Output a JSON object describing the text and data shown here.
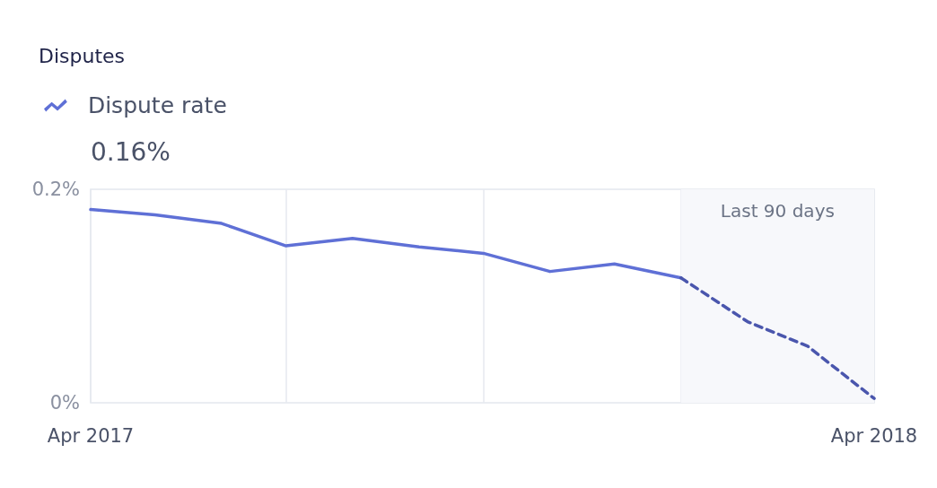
{
  "chart_data": {
    "type": "line",
    "title": "Disputes",
    "subtitle": "0.16%",
    "x": [
      "2017-04",
      "2017-05",
      "2017-06",
      "2017-07",
      "2017-08",
      "2017-09",
      "2017-10",
      "2017-11",
      "2017-12",
      "2018-01",
      "2018-02",
      "2018-03",
      "2018-04"
    ],
    "series": [
      {
        "name": "Dispute rate",
        "color": "#5f70d6",
        "line_style": "solid",
        "values": [
          0.181,
          0.176,
          0.168,
          0.147,
          0.154,
          0.146,
          0.14,
          0.123,
          0.13,
          0.117,
          null,
          null,
          null
        ]
      },
      {
        "color": "#4a56ad",
        "line_style": "dashed",
        "values": [
          null,
          null,
          null,
          null,
          null,
          null,
          null,
          null,
          null,
          0.117,
          0.076,
          0.053,
          0.004
        ]
      }
    ],
    "xlim": [
      "2017-04",
      "2018-04"
    ],
    "xticks": [
      {
        "value": "2017-04",
        "label": "Apr 2017"
      },
      {
        "value": "2017-07",
        "label": null
      },
      {
        "value": "2017-10",
        "label": null
      },
      {
        "value": "2018-01",
        "label": null
      },
      {
        "value": "2018-04",
        "label": "Apr 2018"
      }
    ],
    "ylim": [
      0,
      0.2
    ],
    "yticks": [
      {
        "value": 0,
        "label": "0%"
      },
      {
        "value": 0.2,
        "label": "0.2%"
      }
    ],
    "bands": [
      {
        "axis": "x",
        "from": "2018-01",
        "to": "2018-04",
        "label": "Last 90 days",
        "color": "#f7f8fb"
      }
    ],
    "grid": "x",
    "legend": "top left",
    "marker": "none"
  }
}
